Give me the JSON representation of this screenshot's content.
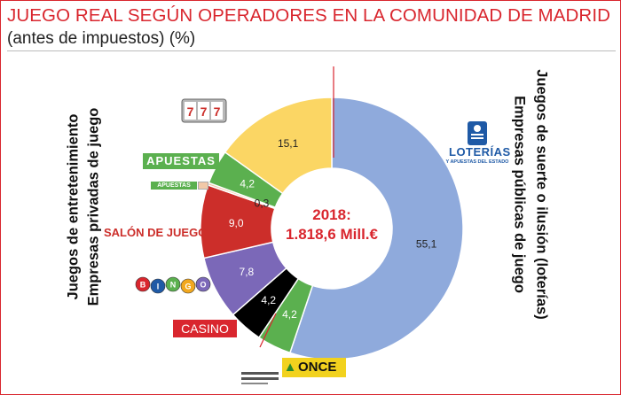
{
  "header": {
    "title": "JUEGO REAL SEGÚN OPERADORES EN LA COMUNIDAD DE MADRID",
    "subtitle": "(antes de impuestos) (%)"
  },
  "left_labels": {
    "line1": "Juegos de entretenimiento",
    "line2": "Empresas privadas de juego"
  },
  "right_labels": {
    "line1": "Juegos de suerte o ilusión (loterías)",
    "line2": "Empresas públicas de juego"
  },
  "logos": {
    "apuestas_big": "APUESTAS",
    "apuestas_small": "APUESTAS",
    "salon": "SALÓN DE JUEGO",
    "bingo": [
      "B",
      "I",
      "N",
      "G",
      "O"
    ],
    "casino": "CASINO",
    "once": "ONCE",
    "loterias": "LOTERÍAS",
    "loterias_sub": "Y APUESTAS DEL ESTADO",
    "slot": "777"
  },
  "colors": {
    "accent": "#d9262e",
    "loterias": "#8faadc",
    "once": "#5bb04f",
    "casino": "#000000",
    "bingo": "#7b68b8",
    "salon": "#cc2e2a",
    "apuestas_small": "#f2c9a8",
    "apuestas": "#5bb04f",
    "maquinas": "#fbd664"
  },
  "chart_data": {
    "type": "pie",
    "center_label": [
      "2018:",
      "1.818,6 Mill.€"
    ],
    "slices": [
      {
        "value": 55.1,
        "label": "55,1",
        "color": "#8faadc"
      },
      {
        "value": 4.2,
        "label": "4,2",
        "color": "#5bb04f"
      },
      {
        "value": 4.2,
        "label": "4,2",
        "color": "#000000"
      },
      {
        "value": 7.8,
        "label": "7,8",
        "color": "#7b68b8"
      },
      {
        "value": 9.0,
        "label": "9,0",
        "color": "#cc2e2a"
      },
      {
        "value": 0.3,
        "label": "0,3",
        "color": "#f2c9a8"
      },
      {
        "value": 4.2,
        "label": "4,2",
        "color": "#5bb04f"
      },
      {
        "value": 15.1,
        "label": "15,1",
        "color": "#fbd664"
      }
    ]
  }
}
